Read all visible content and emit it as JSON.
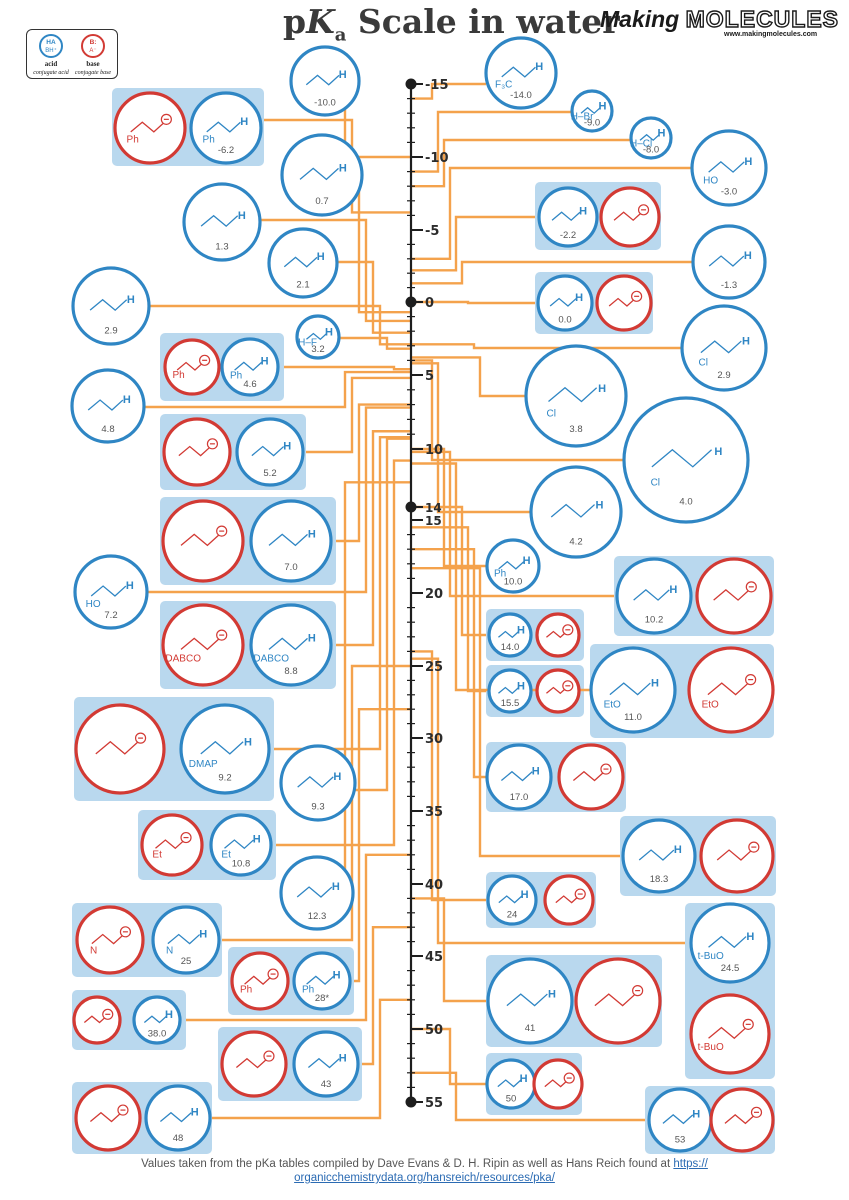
{
  "header": {
    "title_prefix": "p",
    "title_k": "K",
    "title_sub": "a",
    "title_rest": " Scale in water",
    "brand_making": "Making",
    "brand_molecules": "MOLECULES",
    "brand_url": "www.makingmolecules.com"
  },
  "legend": {
    "acid_symbol_1": "HA",
    "acid_symbol_2": "BH⁺",
    "base_symbol_1": "B:",
    "base_symbol_2": "A⁻",
    "acid_label": "acid",
    "acid_sublabel": "conjugate acid",
    "base_label": "base",
    "base_sublabel": "conjugate base"
  },
  "scale": {
    "major_labels": [
      "-15",
      "-10",
      "-5",
      "0",
      "5",
      "10",
      "14",
      "15",
      "20",
      "25",
      "30",
      "35",
      "40",
      "45",
      "50",
      "55"
    ]
  },
  "colors": {
    "acid": "#2f86c4",
    "base": "#d23a34",
    "panel": "#b9d8ee",
    "connector": "#f4a24c",
    "axis": "#1e1e1e"
  },
  "compounds_left": [
    {
      "value": "-10.0",
      "acid_label": "",
      "base_label": ""
    },
    {
      "value": "-6.2",
      "acid_label": "Ph",
      "base_label": "Ph"
    },
    {
      "value": "0.7",
      "acid_label": "",
      "base_label": ""
    },
    {
      "value": "1.3",
      "acid_label": "",
      "base_label": ""
    },
    {
      "value": "2.1",
      "acid_label": "",
      "base_label": ""
    },
    {
      "value": "2.9",
      "acid_label": "",
      "base_label": ""
    },
    {
      "value": "3.2",
      "acid_label": "H–F",
      "base_label": ""
    },
    {
      "value": "4.6",
      "acid_label": "Ph",
      "base_label": "Ph"
    },
    {
      "value": "4.8",
      "acid_label": "",
      "base_label": ""
    },
    {
      "value": "5.2",
      "acid_label": "",
      "base_label": ""
    },
    {
      "value": "7.0",
      "acid_label": "",
      "base_label": ""
    },
    {
      "value": "7.2",
      "acid_label": "HO",
      "base_label": ""
    },
    {
      "value": "8.8",
      "acid_label": "DABCO",
      "base_label": "DABCO"
    },
    {
      "value": "9.2",
      "acid_label": "DMAP",
      "base_label": ""
    },
    {
      "value": "9.3",
      "acid_label": "",
      "base_label": ""
    },
    {
      "value": "10.8",
      "acid_label": "Et",
      "base_label": "Et"
    },
    {
      "value": "12.3",
      "acid_label": "",
      "base_label": ""
    },
    {
      "value": "25",
      "acid_label": "N",
      "base_label": "N"
    },
    {
      "value": "28*",
      "acid_label": "Ph",
      "base_label": "Ph"
    },
    {
      "value": "38.0",
      "acid_label": "",
      "base_label": ""
    },
    {
      "value": "43",
      "acid_label": "",
      "base_label": ""
    },
    {
      "value": "48",
      "acid_label": "",
      "base_label": ""
    }
  ],
  "compounds_right": [
    {
      "value": "-14.0",
      "acid_label": "F₃C",
      "base_label": ""
    },
    {
      "value": "-9.0",
      "acid_label": "H–Br",
      "base_label": ""
    },
    {
      "value": "-8.0",
      "acid_label": "H–Cl",
      "base_label": ""
    },
    {
      "value": "-3.0",
      "acid_label": "HO",
      "base_label": ""
    },
    {
      "value": "-2.2",
      "acid_label": "",
      "base_label": ""
    },
    {
      "value": "-1.3",
      "acid_label": "",
      "base_label": ""
    },
    {
      "value": "0.0",
      "acid_label": "",
      "base_label": ""
    },
    {
      "value": "2.9",
      "acid_label": "Cl",
      "base_label": ""
    },
    {
      "value": "3.8",
      "acid_label": "Cl",
      "base_label": ""
    },
    {
      "value": "4.0",
      "acid_label": "Cl",
      "base_label": ""
    },
    {
      "value": "4.2",
      "acid_label": "",
      "base_label": ""
    },
    {
      "value": "10.0",
      "acid_label": "Ph",
      "base_label": ""
    },
    {
      "value": "10.2",
      "acid_label": "",
      "base_label": ""
    },
    {
      "value": "11.0",
      "acid_label": "EtO",
      "base_label": "EtO"
    },
    {
      "value": "14.0",
      "acid_label": "",
      "base_label": ""
    },
    {
      "value": "15.5",
      "acid_label": "",
      "base_label": ""
    },
    {
      "value": "17.0",
      "acid_label": "",
      "base_label": ""
    },
    {
      "value": "18.3",
      "acid_label": "",
      "base_label": ""
    },
    {
      "value": "24",
      "acid_label": "",
      "base_label": ""
    },
    {
      "value": "24.5",
      "acid_label": "t-BuO",
      "base_label": "t-BuO"
    },
    {
      "value": "41",
      "acid_label": "",
      "base_label": ""
    },
    {
      "value": "50",
      "acid_label": "",
      "base_label": ""
    },
    {
      "value": "53",
      "acid_label": "",
      "base_label": ""
    }
  ],
  "footer": {
    "text": "Values taken from the pKa tables compiled by Dave Evans & D. H. Ripin as well as Hans Reich found at",
    "link_1": "https://",
    "link_2": "organicchemistrydata.org/hansreich/resources/pka/"
  }
}
